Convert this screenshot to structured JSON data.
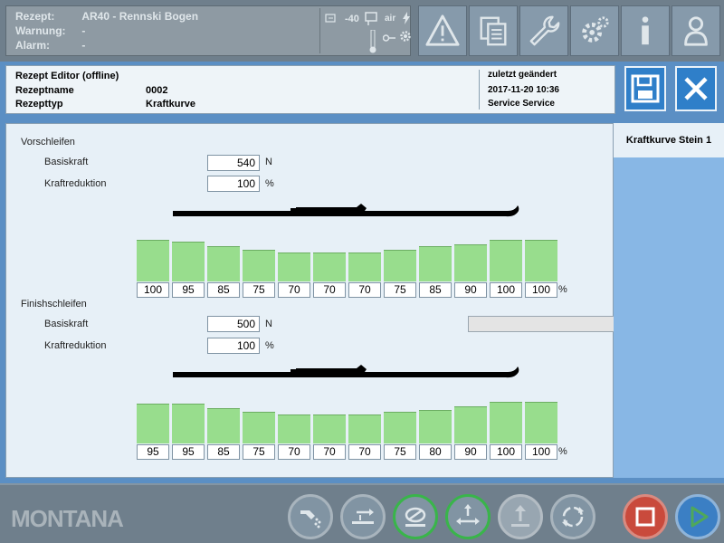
{
  "status": {
    "rows": [
      {
        "label": "Rezept:",
        "value": "AR40 - Rennski Bogen"
      },
      {
        "label": "Warnung:",
        "value": "-"
      },
      {
        "label": "Alarm:",
        "value": "-"
      }
    ],
    "temp_value": "-40",
    "air_label": "air"
  },
  "header": {
    "title": "Rezept Editor (offline)",
    "name_label": "Rezeptname",
    "name_value": "0002",
    "type_label": "Rezepttyp",
    "type_value": "Kraftkurve",
    "changed_label": "zuletzt geändert",
    "changed_date": "2017-11-20 10:36",
    "changed_by": "Service Service"
  },
  "vorschleifen": {
    "title": "Vorschleifen",
    "base_label": "Basiskraft",
    "base_value": "540",
    "base_unit": "N",
    "red_label": "Kraftreduktion",
    "red_value": "100",
    "red_unit": "%",
    "values": [
      100,
      95,
      85,
      75,
      70,
      70,
      70,
      75,
      85,
      90,
      100,
      100
    ],
    "pct_unit": "%"
  },
  "finishschleifen": {
    "title": "Finishschleifen",
    "base_label": "Basiskraft",
    "base_value": "500",
    "base_unit": "N",
    "red_label": "Kraftreduktion",
    "red_value": "100",
    "red_unit": "%",
    "values": [
      95,
      95,
      85,
      75,
      70,
      70,
      70,
      75,
      80,
      90,
      100,
      100
    ],
    "pct_unit": "%"
  },
  "right_panel": {
    "tab_label": "Kraftkurve Stein 1"
  },
  "logo_text": "MONTANA",
  "icons": {
    "top": [
      "warning-icon",
      "copy-icon",
      "wrench-icon",
      "gear-icon",
      "info-icon",
      "user-icon"
    ],
    "actions": [
      "save-icon",
      "close-icon"
    ],
    "bottom": [
      "spray-icon",
      "load-icon",
      "stop-process-icon",
      "edge-icon",
      "lift-icon",
      "rotate-icon",
      "stop-icon",
      "play-icon"
    ]
  },
  "colors": {
    "bar_fill": "#98dd8d",
    "accent_blue": "#2f7fc9",
    "stop_red": "#c94a3c",
    "play_green": "#4fa85a",
    "active_ring_green": "#39b54a"
  }
}
